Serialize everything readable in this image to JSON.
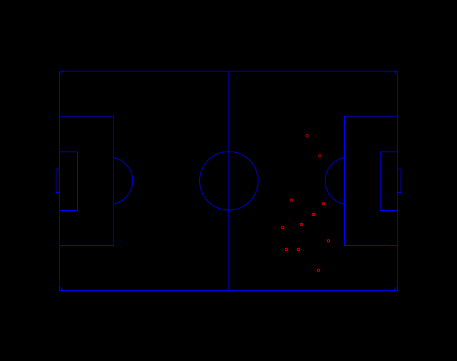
{
  "colors": {
    "background": "#000000",
    "pitch_line": "#0000ff",
    "player_marker": "#ff0000"
  },
  "pitch": {
    "markings": [
      "outer-boundary",
      "halfway-line",
      "center-circle",
      "left-penalty-box",
      "left-goal-box",
      "left-penalty-arc",
      "left-goal",
      "right-penalty-box",
      "right-goal-box",
      "right-penalty-arc",
      "right-goal",
      "corner-arcs"
    ]
  },
  "players": [
    {
      "id": 1,
      "label": "player-1"
    },
    {
      "id": 2,
      "label": "player-2"
    },
    {
      "id": 3,
      "label": "player-3"
    },
    {
      "id": 4,
      "label": "player-4"
    },
    {
      "id": 5,
      "label": "player-5"
    },
    {
      "id": 6,
      "label": "player-6"
    },
    {
      "id": 7,
      "label": "player-7"
    },
    {
      "id": 8,
      "label": "player-8"
    },
    {
      "id": 9,
      "label": "player-9"
    },
    {
      "id": 10,
      "label": "player-10"
    },
    {
      "id": 11,
      "label": "player-11"
    }
  ]
}
